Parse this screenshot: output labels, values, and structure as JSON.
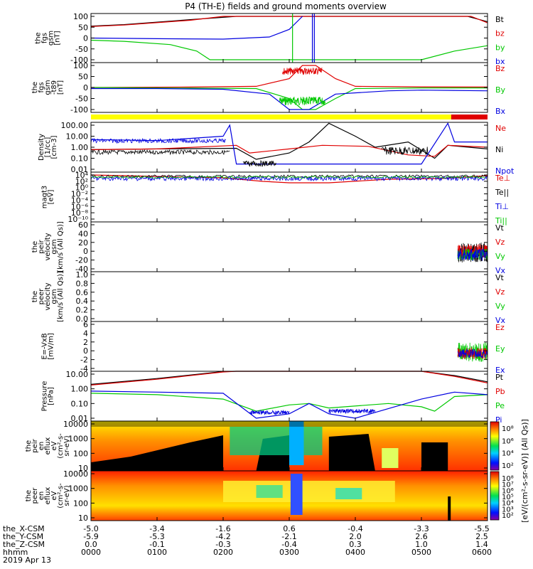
{
  "title": "P4 (TH-E) fields and ground moments overview",
  "date_label": "2019 Apr 13",
  "colors": {
    "black": "#000000",
    "red": "#e00000",
    "green": "#00c800",
    "blue": "#0000e0",
    "yellow": "#ffff00"
  },
  "panels": [
    {
      "id": "fgs",
      "ylabel": [
        "the",
        "fgs",
        "gsm",
        "[nT]"
      ],
      "ticks": [
        "100",
        "50",
        "0",
        "-50",
        "-100"
      ],
      "legend": [
        {
          "text": "Bt",
          "color": "black"
        },
        {
          "text": "bz",
          "color": "red"
        },
        {
          "text": "by",
          "color": "green"
        },
        {
          "text": "bx",
          "color": "blue"
        }
      ]
    },
    {
      "id": "fgs-t89",
      "ylabel": [
        "the",
        "fgs",
        "gsm",
        "-t89",
        "[nT]"
      ],
      "ticks": [
        "100",
        "50",
        "0",
        "-50",
        "-100"
      ],
      "legend": [
        {
          "text": "Bz",
          "color": "red"
        },
        {
          "text": "By",
          "color": "green"
        },
        {
          "text": "Bx",
          "color": "blue"
        }
      ]
    },
    {
      "id": "density",
      "ylabel": [
        "Density",
        "[1/cc]",
        "[cm-3]"
      ],
      "ticks": [
        "100.00",
        "10.00",
        "1.00",
        "0.10",
        "0.01"
      ],
      "legend": [
        {
          "text": "Ne",
          "color": "red"
        },
        {
          "text": "Ni",
          "color": "black"
        },
        {
          "text": "Npot",
          "color": "blue"
        }
      ]
    },
    {
      "id": "magt3",
      "ylabel": [
        "magt3",
        "[eV]"
      ],
      "ticks": [
        "10⁴",
        "10²",
        "10⁰",
        "10⁻²",
        "10⁻⁴",
        "10⁻⁶",
        "10⁻⁸",
        "10⁻¹⁰"
      ],
      "legend": [
        {
          "text": "Te⊥",
          "color": "red"
        },
        {
          "text": "Te||",
          "color": "black"
        },
        {
          "text": "Ti⊥",
          "color": "blue"
        },
        {
          "text": "Ti||",
          "color": "green"
        }
      ]
    },
    {
      "id": "peir-vel",
      "ylabel": [
        "the",
        "peir",
        "velocity",
        "gsm",
        "[km/s (All Qs)]"
      ],
      "ticks": [
        "60",
        "40",
        "20",
        "0",
        "-20",
        "-40"
      ],
      "legend": [
        {
          "text": "Vt",
          "color": "black"
        },
        {
          "text": "Vz",
          "color": "red"
        },
        {
          "text": "Vy",
          "color": "green"
        },
        {
          "text": "Vx",
          "color": "blue"
        }
      ]
    },
    {
      "id": "peer-vel",
      "ylabel": [
        "the",
        "peer",
        "velocity",
        "gsm",
        "[km/s (All Qs)]"
      ],
      "ticks": [
        "1.0",
        "0.8",
        "0.6",
        "0.4",
        "0.2",
        "0.0"
      ],
      "legend": [
        {
          "text": "Vt",
          "color": "black"
        },
        {
          "text": "Vz",
          "color": "red"
        },
        {
          "text": "Vy",
          "color": "green"
        },
        {
          "text": "Vx",
          "color": "blue"
        }
      ]
    },
    {
      "id": "exb",
      "ylabel": [
        "E=-VxB",
        "[mV/m]"
      ],
      "ticks": [
        "6",
        "4",
        "2",
        "0",
        "-2",
        "-4"
      ],
      "legend": [
        {
          "text": "Ez",
          "color": "red"
        },
        {
          "text": "Ey",
          "color": "green"
        },
        {
          "text": "Ex",
          "color": "blue"
        }
      ]
    },
    {
      "id": "pressure",
      "ylabel": [
        "Pressure",
        "[nPa]"
      ],
      "ticks": [
        "10.00",
        "1.00",
        "0.10",
        "0.01"
      ],
      "legend": [
        {
          "text": "Pt",
          "color": "black"
        },
        {
          "text": "Pb",
          "color": "red"
        },
        {
          "text": "Pe",
          "color": "green"
        },
        {
          "text": "Pi",
          "color": "blue"
        }
      ]
    },
    {
      "id": "peir-eflux",
      "ylabel": [
        "the",
        "peir",
        "en",
        "eflux",
        "eV",
        "(cm²-s-",
        "sr-eV)"
      ],
      "ticks": [
        "10000",
        "1000",
        "100",
        "10"
      ],
      "cbar_ticks": [
        "10⁸",
        "10⁶",
        "10⁴",
        "10²"
      ]
    },
    {
      "id": "peer-eflux",
      "ylabel": [
        "the",
        "peer",
        "en",
        "eflux",
        "eV",
        "(cm²-s-",
        "sr-eV)"
      ],
      "ticks": [
        "10000",
        "1000",
        "100",
        "10"
      ],
      "cbar_ticks": [
        "10⁸",
        "10⁷",
        "10⁶",
        "10⁵",
        "10⁴",
        "10³",
        "10²"
      ]
    }
  ],
  "cbar_label": "[eV/(cm²-s-sr-eV)] (All Qs)]",
  "xaxis": {
    "row_labels": [
      "the_X-CSM",
      "the_Y-CSM",
      "the_Z-CSM",
      "hhmm"
    ],
    "columns": [
      [
        "-5.0",
        "-5.9",
        "0.0",
        "0000"
      ],
      [
        "-3.4",
        "-5.3",
        "-0.1",
        "0100"
      ],
      [
        "-1.6",
        "-4.2",
        "-0.3",
        "0200"
      ],
      [
        "0.6",
        "-2.1",
        "-0.4",
        "0300"
      ],
      [
        "-0.4",
        "2.0",
        "0.3",
        "0400"
      ],
      [
        "-3.3",
        "2.6",
        "1.0",
        "0500"
      ],
      [
        "-5.5",
        "2.5",
        "1.4",
        "0600"
      ]
    ]
  },
  "chart_data": {
    "type": "line",
    "title": "P4 (TH-E) fields and ground moments overview",
    "x_hhmm": [
      "0000",
      "0100",
      "0200",
      "0300",
      "0400",
      "0500",
      "0600"
    ],
    "series": [
      {
        "panel": "fgs",
        "name": "Bt",
        "x": [
          0,
          0.5,
          1.5,
          2.2,
          5.7,
          6.0
        ],
        "y": [
          55,
          62,
          85,
          100,
          100,
          75
        ]
      },
      {
        "panel": "fgs",
        "name": "bz",
        "x": [
          0,
          0.5,
          1.5,
          2.0,
          5.75,
          6.0
        ],
        "y": [
          53,
          60,
          82,
          100,
          100,
          70
        ]
      },
      {
        "panel": "fgs",
        "name": "by",
        "x": [
          0,
          0.5,
          1.2,
          1.6,
          1.8,
          5.0,
          5.5,
          6.0
        ],
        "y": [
          -10,
          -15,
          -30,
          -60,
          -100,
          -100,
          -60,
          -35
        ]
      },
      {
        "panel": "fgs",
        "name": "bx",
        "x": [
          0,
          1.0,
          2.0,
          2.7,
          3.0,
          3.2
        ],
        "y": [
          0,
          -3,
          -5,
          5,
          40,
          100
        ]
      },
      {
        "panel": "fgs-t89",
        "name": "Bz",
        "x": [
          0,
          1.5,
          2.5,
          3.0,
          3.2,
          3.4,
          3.7,
          4.0,
          5.0,
          6.0
        ],
        "y": [
          0,
          2,
          5,
          40,
          100,
          100,
          40,
          5,
          3,
          2
        ]
      },
      {
        "panel": "fgs-t89",
        "name": "By",
        "x": [
          0,
          1.5,
          2.5,
          3.0,
          3.2,
          3.4,
          3.7,
          4.0,
          5.0,
          6.0
        ],
        "y": [
          0,
          -3,
          -5,
          -50,
          -100,
          -100,
          -50,
          -5,
          -2,
          -2
        ]
      },
      {
        "panel": "fgs-t89",
        "name": "Bx",
        "x": [
          0,
          1.0,
          2.0,
          2.7,
          3.0,
          3.3,
          3.7,
          4.5,
          5.0,
          6.0
        ],
        "y": [
          -5,
          -5,
          -8,
          -30,
          -100,
          -100,
          -30,
          -15,
          -12,
          -15
        ]
      },
      {
        "panel": "density",
        "name": "Ni",
        "x": [
          0,
          1.0,
          2.2,
          2.5,
          3.0,
          3.3,
          3.6,
          4.0,
          4.3,
          4.8,
          5.2,
          5.4,
          6.0
        ],
        "y": [
          0.6,
          0.7,
          0.8,
          0.08,
          0.3,
          3,
          150,
          10,
          1,
          3,
          0.1,
          1.5,
          0.7
        ]
      },
      {
        "panel": "density",
        "name": "Ne",
        "x": [
          0,
          1.0,
          2.2,
          2.4,
          3.0,
          3.5,
          4.2,
          4.8,
          5.2,
          5.4,
          6.0
        ],
        "y": [
          0.6,
          0.7,
          1.5,
          0.3,
          0.7,
          1.5,
          1.2,
          0.2,
          0.15,
          1.5,
          1.0
        ]
      },
      {
        "panel": "density",
        "name": "Npot",
        "x": [
          0,
          1.0,
          2.0,
          2.1,
          2.2,
          2.5,
          3.0,
          4.0,
          5.0,
          5.4,
          5.5,
          6.0
        ],
        "y": [
          5,
          4,
          10,
          100,
          0.03,
          0.03,
          0.03,
          0.03,
          0.03,
          150,
          3,
          3
        ]
      },
      {
        "panel": "pressure",
        "name": "Pt",
        "x": [
          0,
          1.0,
          2.0,
          2.2,
          5.0,
          5.5,
          6.0
        ],
        "y": [
          2,
          5,
          15,
          20,
          20,
          8,
          3
        ]
      },
      {
        "panel": "pressure",
        "name": "Pb",
        "x": [
          0,
          1.0,
          2.0,
          2.2,
          5.0,
          5.5,
          6.0
        ],
        "y": [
          1.8,
          4.5,
          14,
          20,
          20,
          7,
          2.5
        ]
      },
      {
        "panel": "pressure",
        "name": "Pe",
        "x": [
          0,
          1.0,
          2.0,
          2.5,
          3.0,
          3.3,
          3.6,
          4.5,
          5.0,
          5.2,
          5.5,
          6.0
        ],
        "y": [
          0.5,
          0.4,
          0.2,
          0.03,
          0.08,
          0.1,
          0.05,
          0.1,
          0.06,
          0.03,
          0.3,
          0.4
        ]
      },
      {
        "panel": "pressure",
        "name": "Pi",
        "x": [
          0,
          1.0,
          2.0,
          2.5,
          3.0,
          3.3,
          3.6,
          4.0,
          5.0,
          5.5,
          6.0
        ],
        "y": [
          0.7,
          0.6,
          0.5,
          0.01,
          0.02,
          0.1,
          0.02,
          0.01,
          0.2,
          0.6,
          0.4
        ]
      }
    ]
  }
}
